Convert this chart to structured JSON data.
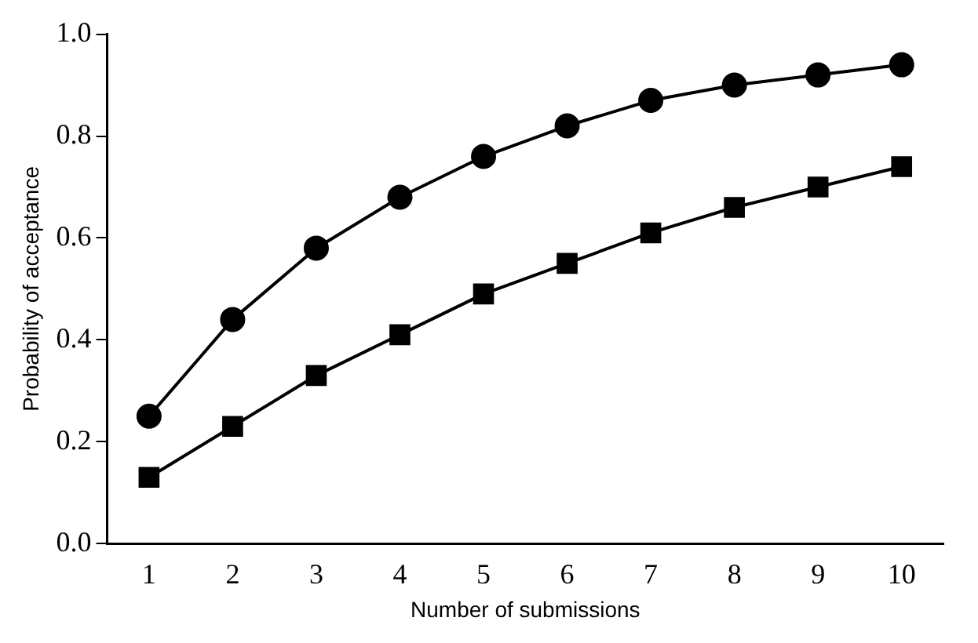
{
  "chart_data": {
    "type": "line",
    "xlabel": "Number of submissions",
    "ylabel": "Probability of acceptance",
    "categories": [
      "1",
      "2",
      "3",
      "4",
      "5",
      "6",
      "7",
      "8",
      "9",
      "10"
    ],
    "series": [
      {
        "color": "#000000",
        "marker": "circle",
        "values": [
          0.25,
          0.44,
          0.58,
          0.68,
          0.76,
          0.82,
          0.87,
          0.9,
          0.92,
          0.94
        ]
      },
      {
        "color": "#000000",
        "marker": "square",
        "values": [
          0.13,
          0.23,
          0.33,
          0.41,
          0.49,
          0.55,
          0.61,
          0.66,
          0.7,
          0.74
        ]
      }
    ],
    "ylim": [
      0,
      1
    ],
    "yticks": [
      {
        "value": 0,
        "label": "0.0"
      },
      {
        "value": 0.2,
        "label": "0.2"
      },
      {
        "value": 0.4,
        "label": "0.4"
      },
      {
        "value": 0.6,
        "label": "0.6"
      },
      {
        "value": 0.8,
        "label": "0.8"
      },
      {
        "value": 1,
        "label": "1.0"
      }
    ],
    "grid": false,
    "legend": false,
    "line_style": "solid"
  }
}
